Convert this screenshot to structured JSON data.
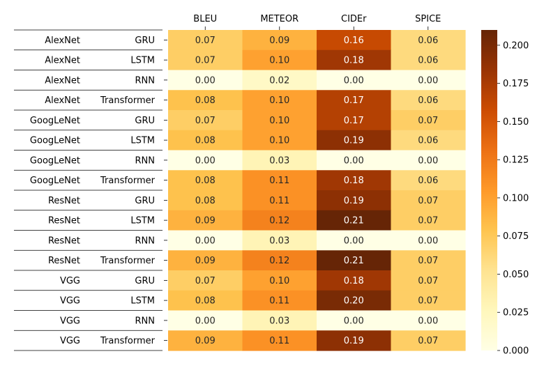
{
  "chart_data": {
    "type": "heatmap",
    "columns": [
      "BLEU",
      "METEOR",
      "CIDEr",
      "SPICE"
    ],
    "rows": [
      [
        "AlexNet",
        "GRU"
      ],
      [
        "AlexNet",
        "LSTM"
      ],
      [
        "AlexNet",
        "RNN"
      ],
      [
        "AlexNet",
        "Transformer"
      ],
      [
        "GoogLeNet",
        "GRU"
      ],
      [
        "GoogLeNet",
        "LSTM"
      ],
      [
        "GoogLeNet",
        "RNN"
      ],
      [
        "GoogLeNet",
        "Transformer"
      ],
      [
        "ResNet",
        "GRU"
      ],
      [
        "ResNet",
        "LSTM"
      ],
      [
        "ResNet",
        "RNN"
      ],
      [
        "ResNet",
        "Transformer"
      ],
      [
        "VGG",
        "GRU"
      ],
      [
        "VGG",
        "LSTM"
      ],
      [
        "VGG",
        "RNN"
      ],
      [
        "VGG",
        "Transformer"
      ]
    ],
    "values": [
      [
        0.07,
        0.09,
        0.16,
        0.06
      ],
      [
        0.07,
        0.1,
        0.18,
        0.06
      ],
      [
        0.0,
        0.02,
        0.0,
        0.0
      ],
      [
        0.08,
        0.1,
        0.17,
        0.06
      ],
      [
        0.07,
        0.1,
        0.17,
        0.07
      ],
      [
        0.08,
        0.1,
        0.19,
        0.06
      ],
      [
        0.0,
        0.03,
        0.0,
        0.0
      ],
      [
        0.08,
        0.11,
        0.18,
        0.06
      ],
      [
        0.08,
        0.11,
        0.19,
        0.07
      ],
      [
        0.09,
        0.12,
        0.21,
        0.07
      ],
      [
        0.0,
        0.03,
        0.0,
        0.0
      ],
      [
        0.09,
        0.12,
        0.21,
        0.07
      ],
      [
        0.07,
        0.1,
        0.18,
        0.07
      ],
      [
        0.08,
        0.11,
        0.2,
        0.07
      ],
      [
        0.0,
        0.03,
        0.0,
        0.0
      ],
      [
        0.09,
        0.11,
        0.19,
        0.07
      ]
    ],
    "colorbar": {
      "colormap": "YlOrBr",
      "range": [
        0.0,
        0.21
      ],
      "ticks": [
        "0.000",
        "0.025",
        "0.050",
        "0.075",
        "0.100",
        "0.125",
        "0.150",
        "0.175",
        "0.200"
      ]
    },
    "title": "",
    "xlabel": "",
    "ylabel": ""
  }
}
